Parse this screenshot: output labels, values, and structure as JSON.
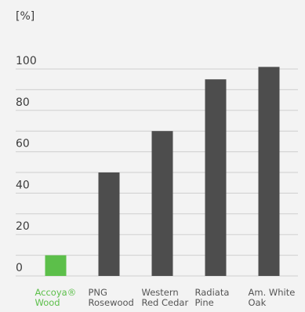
{
  "chart_data": {
    "type": "bar",
    "unit_label": "[%]",
    "categories": [
      [
        "Accoya®",
        "Wood"
      ],
      [
        "PNG",
        "Rosewood"
      ],
      [
        "Western",
        "Red Cedar"
      ],
      [
        "Radiata",
        "Pine"
      ],
      [
        "Am. White",
        "Oak"
      ]
    ],
    "values": [
      10,
      50,
      70,
      95,
      101
    ],
    "highlight_index": 0,
    "yticks": [
      0,
      20,
      40,
      60,
      80,
      100
    ],
    "ylim": [
      0,
      110
    ],
    "grid": true,
    "colors": {
      "highlight": "#5cbf4a",
      "bar": "#4d4d4d",
      "grid": "#cfcfcf"
    }
  }
}
